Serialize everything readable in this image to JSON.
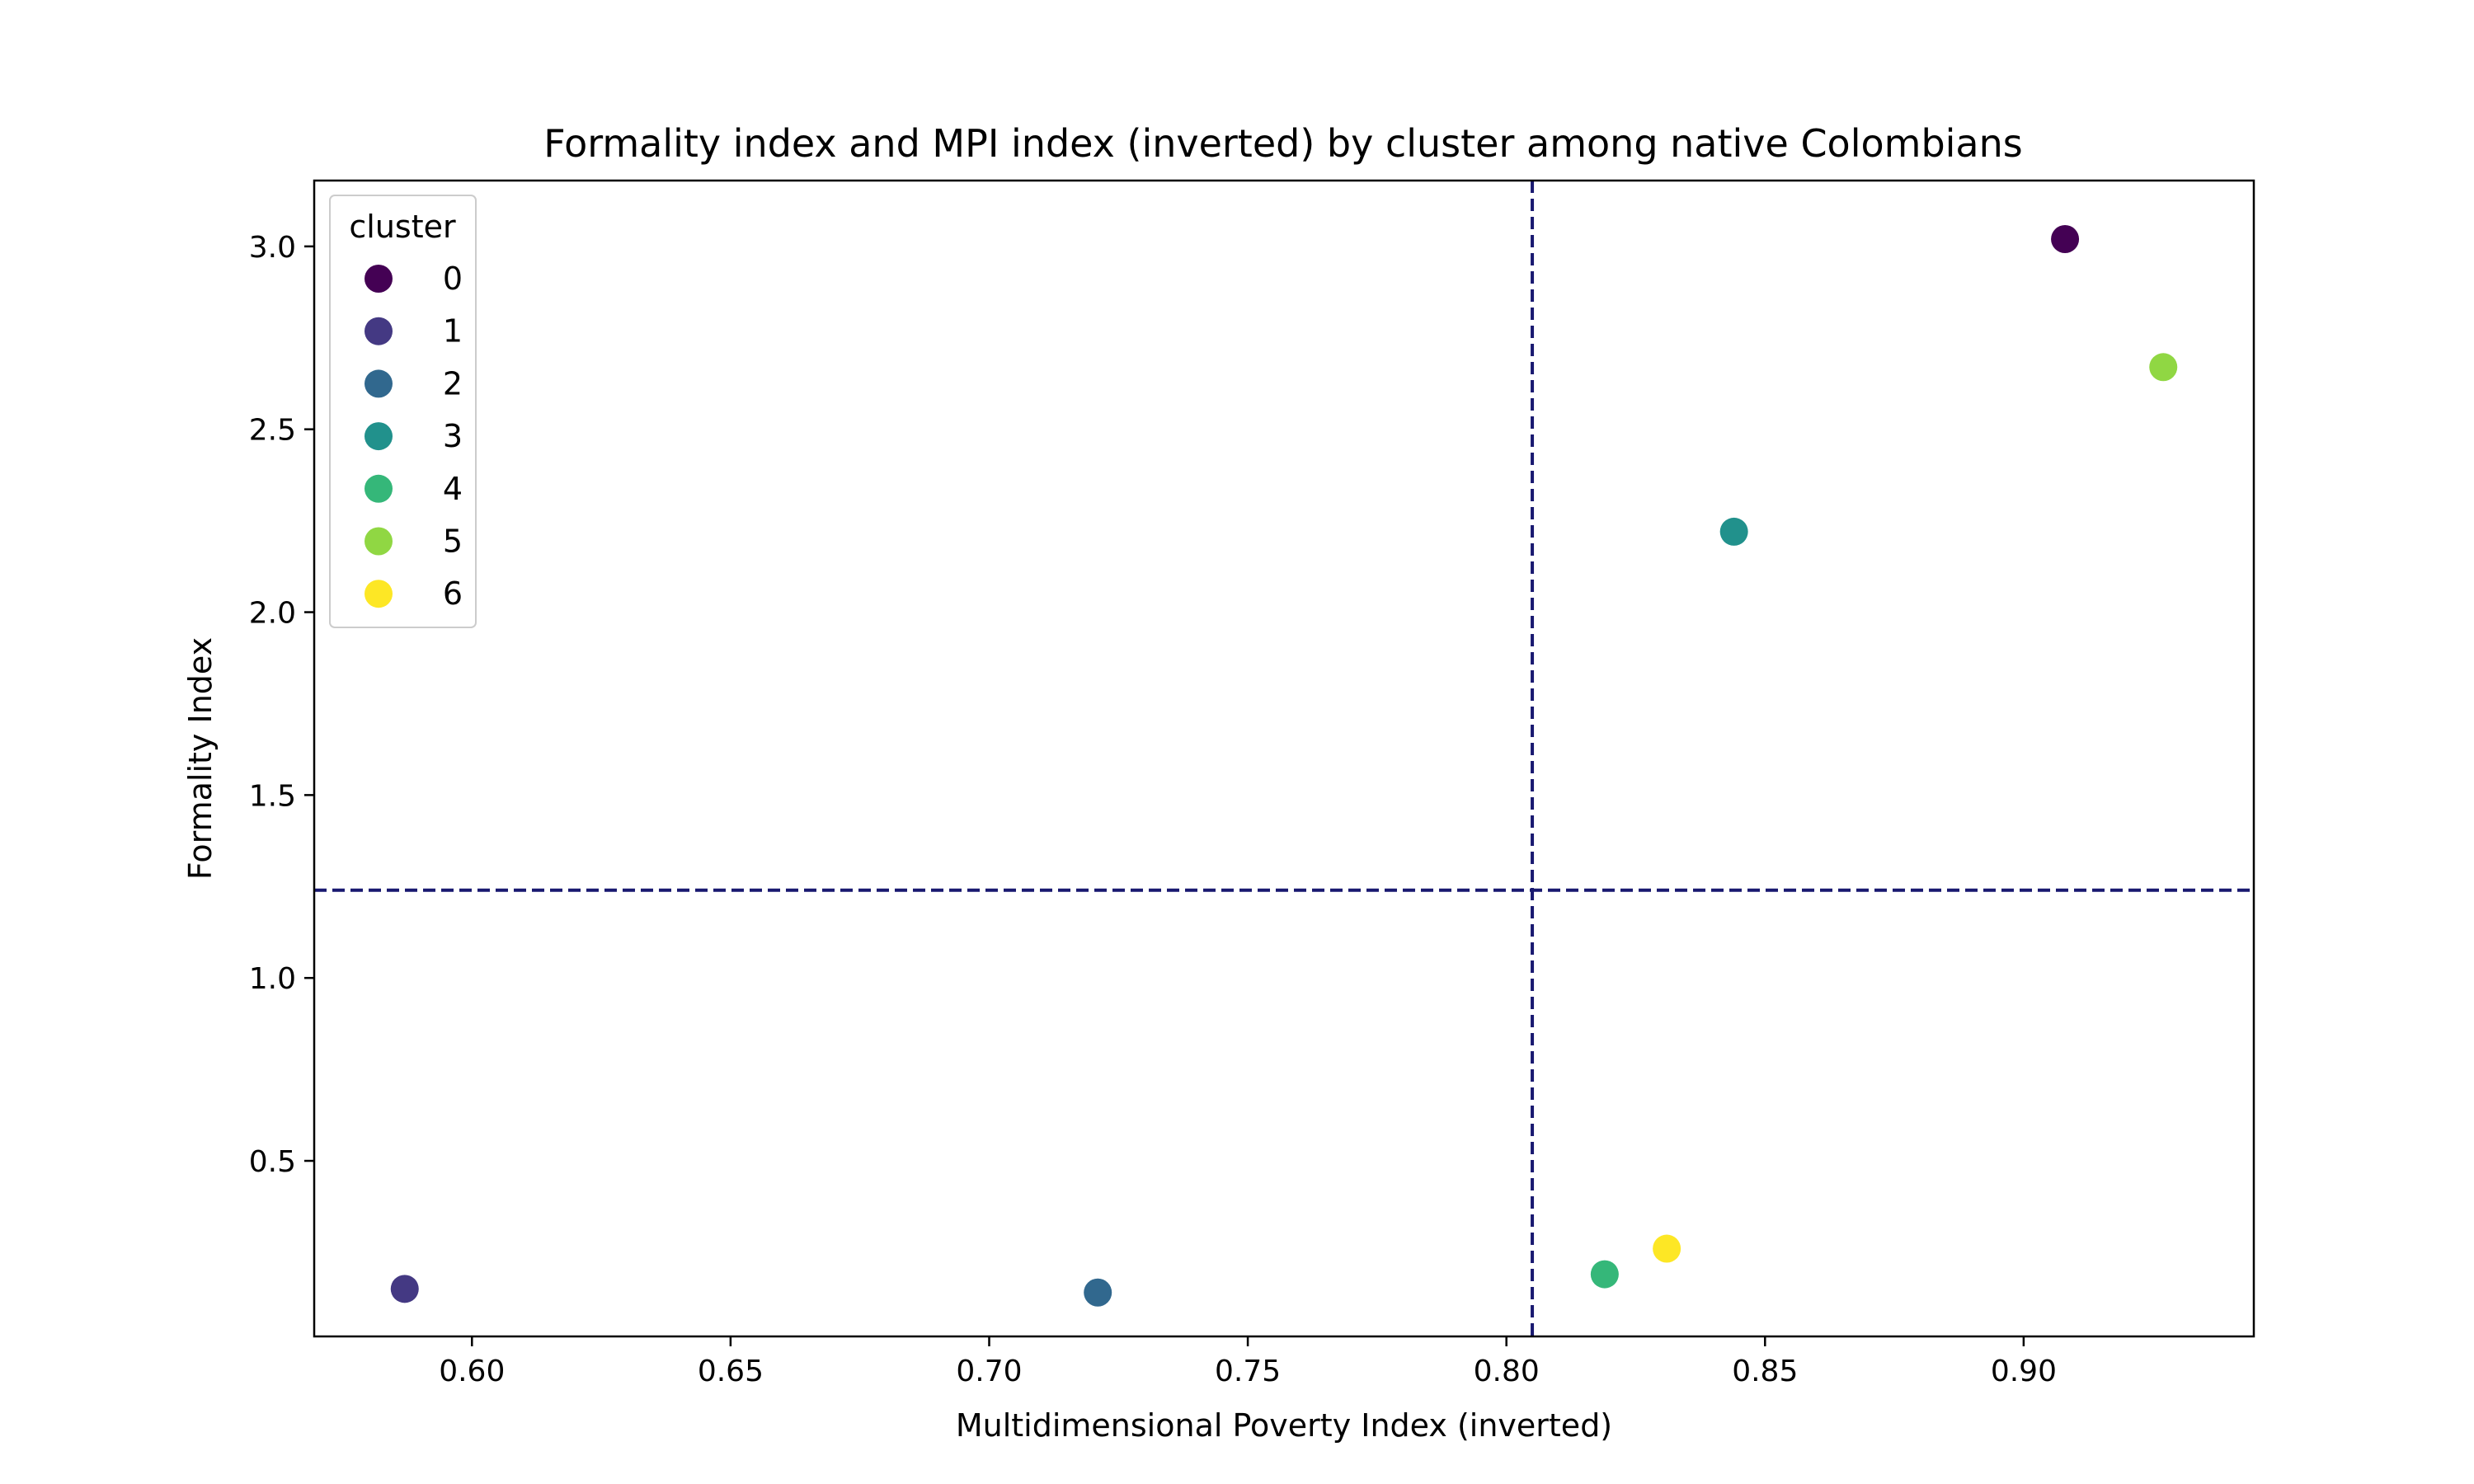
{
  "chart_data": {
    "type": "scatter",
    "title": "Formality index and MPI index (inverted) by cluster among native Colombians",
    "xlabel": "Multidimensional Poverty Index (inverted)",
    "ylabel": "Formality Index",
    "xlim": [
      0.5695,
      0.9445
    ],
    "ylim": [
      0.02,
      3.18
    ],
    "xticks": [
      0.6,
      0.65,
      0.7,
      0.75,
      0.8,
      0.85,
      0.9
    ],
    "xtick_labels": [
      "0.60",
      "0.65",
      "0.70",
      "0.75",
      "0.80",
      "0.85",
      "0.90"
    ],
    "yticks": [
      0.5,
      1.0,
      1.5,
      2.0,
      2.5,
      3.0
    ],
    "ytick_labels": [
      "0.5",
      "1.0",
      "1.5",
      "2.0",
      "2.5",
      "3.0"
    ],
    "grid": false,
    "legend": {
      "title": "cluster",
      "placement": "upper-left"
    },
    "reference_lines": {
      "vertical_x": 0.805,
      "horizontal_y": 1.24,
      "style": "dashed",
      "color": "#191970"
    },
    "series": [
      {
        "name": "0",
        "color": "#440154",
        "x": 0.908,
        "y": 3.02
      },
      {
        "name": "1",
        "color": "#443983",
        "x": 0.587,
        "y": 0.15
      },
      {
        "name": "2",
        "color": "#31688e",
        "x": 0.721,
        "y": 0.14
      },
      {
        "name": "3",
        "color": "#21918c",
        "x": 0.844,
        "y": 2.22
      },
      {
        "name": "4",
        "color": "#35b779",
        "x": 0.819,
        "y": 0.19
      },
      {
        "name": "5",
        "color": "#90d743",
        "x": 0.927,
        "y": 2.67
      },
      {
        "name": "6",
        "color": "#fde725",
        "x": 0.831,
        "y": 0.26
      }
    ]
  }
}
